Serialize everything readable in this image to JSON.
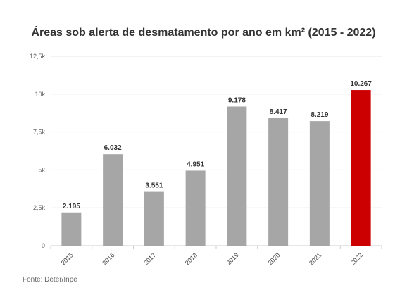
{
  "chart_data": {
    "type": "bar",
    "title": "Áreas sob alerta de desmatamento por ano em km² (2015 - 2022)",
    "categories": [
      "2015",
      "2016",
      "2017",
      "2018",
      "2019",
      "2020",
      "2021",
      "2022"
    ],
    "values": [
      2195,
      6032,
      3551,
      4951,
      9178,
      8417,
      8219,
      10267
    ],
    "data_labels": [
      "2.195",
      "6.032",
      "3.551",
      "4.951",
      "9.178",
      "8.417",
      "8.219",
      "10.267"
    ],
    "ylim": [
      0,
      12500
    ],
    "yticks": [
      0,
      2500,
      5000,
      7500,
      10000,
      12500
    ],
    "ytick_labels": [
      "0",
      "2,5k",
      "5k",
      "7,5k",
      "10k",
      "12,5k"
    ],
    "grid": true,
    "xlabel": "",
    "ylabel": "",
    "colors": {
      "default": "#a6a6a6",
      "highlight": "#cc0000",
      "highlight_index": 7
    }
  },
  "source": "Fonte: Deter/Inpe"
}
